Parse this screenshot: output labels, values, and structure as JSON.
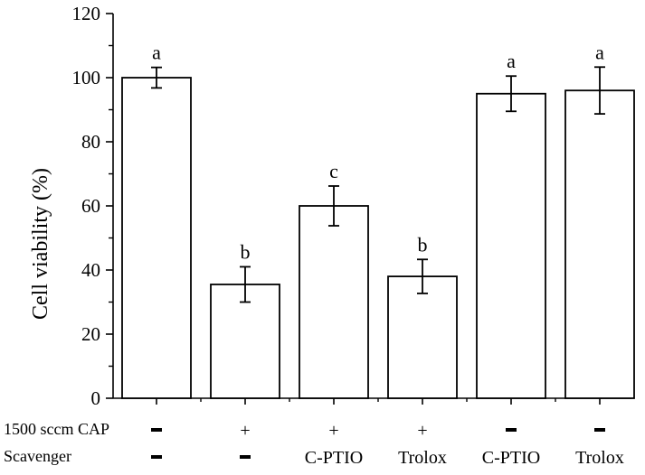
{
  "chart_data": {
    "type": "bar",
    "title": "",
    "xlabel": "",
    "ylabel": "Cell viability (%)",
    "ylim": [
      0,
      120
    ],
    "yticks": [
      0,
      20,
      40,
      60,
      80,
      100,
      120
    ],
    "grid": false,
    "legend": "none",
    "bar_fill": "#ffffff",
    "bar_stroke": "#000000",
    "categories": [
      "1",
      "2",
      "3",
      "4",
      "5",
      "6"
    ],
    "values": [
      100,
      35.5,
      60,
      38,
      95,
      96
    ],
    "errors": [
      3.2,
      5.5,
      6.2,
      5.3,
      5.5,
      7.3
    ],
    "significance": [
      "a",
      "b",
      "c",
      "b",
      "a",
      "a"
    ],
    "condition_rows": [
      {
        "label": "1500 sccm CAP",
        "values": [
          "—",
          "+",
          "+",
          "+",
          "—",
          "—"
        ]
      },
      {
        "label": "Scavenger",
        "values": [
          "—",
          "—",
          "C-PTIO",
          "Trolox",
          "C-PTIO",
          "Trolox"
        ]
      }
    ]
  }
}
